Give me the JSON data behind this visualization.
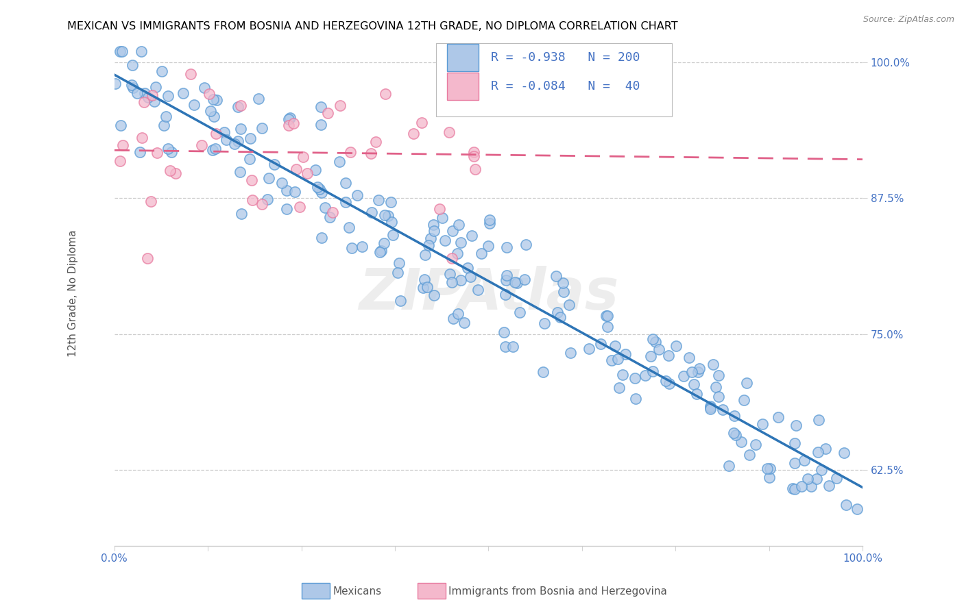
{
  "title": "MEXICAN VS IMMIGRANTS FROM BOSNIA AND HERZEGOVINA 12TH GRADE, NO DIPLOMA CORRELATION CHART",
  "source": "Source: ZipAtlas.com",
  "ylabel": "12th Grade, No Diploma",
  "xlim": [
    0.0,
    1.0
  ],
  "ylim": [
    0.555,
    1.02
  ],
  "y_tick_labels": [
    "62.5%",
    "75.0%",
    "87.5%",
    "100.0%"
  ],
  "y_tick_positions": [
    0.625,
    0.75,
    0.875,
    1.0
  ],
  "blue_color": "#aec8e8",
  "blue_edge_color": "#5b9bd5",
  "blue_line_color": "#2e75b6",
  "pink_color": "#f4b8cc",
  "pink_edge_color": "#e87ba0",
  "pink_line_color": "#e06088",
  "blue_R": -0.938,
  "blue_N": 200,
  "pink_R": -0.084,
  "pink_N": 40,
  "watermark": "ZIPAtlas",
  "legend_label_blue": "Mexicans",
  "legend_label_pink": "Immigrants from Bosnia and Herzegovina",
  "title_fontsize": 11.5,
  "label_fontsize": 11,
  "tick_fontsize": 11,
  "legend_fontsize": 13
}
